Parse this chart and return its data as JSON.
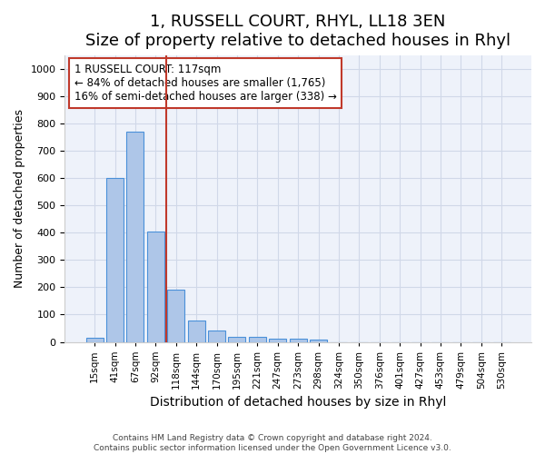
{
  "title": "1, RUSSELL COURT, RHYL, LL18 3EN",
  "subtitle": "Size of property relative to detached houses in Rhyl",
  "xlabel": "Distribution of detached houses by size in Rhyl",
  "ylabel": "Number of detached properties",
  "bin_labels": [
    "15sqm",
    "41sqm",
    "67sqm",
    "92sqm",
    "118sqm",
    "144sqm",
    "170sqm",
    "195sqm",
    "221sqm",
    "247sqm",
    "273sqm",
    "298sqm",
    "324sqm",
    "350sqm",
    "376sqm",
    "401sqm",
    "427sqm",
    "453sqm",
    "479sqm",
    "504sqm",
    "530sqm"
  ],
  "bar_heights": [
    15,
    600,
    770,
    405,
    190,
    78,
    40,
    18,
    18,
    12,
    12,
    7,
    0,
    0,
    0,
    0,
    0,
    0,
    0,
    0,
    0
  ],
  "bar_color": "#aec6e8",
  "bar_edge_color": "#4a90d9",
  "grid_color": "#d0d8e8",
  "vline_bin": 4,
  "vline_color": "#c0392b",
  "annotation_line1": "1 RUSSELL COURT: 117sqm",
  "annotation_line2": "← 84% of detached houses are smaller (1,765)",
  "annotation_line3": "16% of semi-detached houses are larger (338) →",
  "annotation_box_color": "#ffffff",
  "annotation_box_edge": "#c0392b",
  "ylim": [
    0,
    1050
  ],
  "yticks": [
    0,
    100,
    200,
    300,
    400,
    500,
    600,
    700,
    800,
    900,
    1000
  ],
  "footer1": "Contains HM Land Registry data © Crown copyright and database right 2024.",
  "footer2": "Contains public sector information licensed under the Open Government Licence v3.0.",
  "background_color": "#eef2fa",
  "title_fontsize": 13,
  "subtitle_fontsize": 11,
  "xlabel_fontsize": 10,
  "ylabel_fontsize": 9,
  "tick_fontsize": 7.5,
  "annotation_fontsize": 8.5
}
